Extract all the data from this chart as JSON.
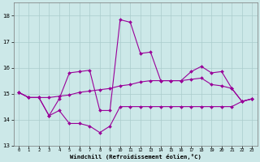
{
  "x": [
    0,
    1,
    2,
    3,
    4,
    5,
    6,
    7,
    8,
    9,
    10,
    11,
    12,
    13,
    14,
    15,
    16,
    17,
    18,
    19,
    20,
    21,
    22,
    23
  ],
  "line1": [
    15.05,
    14.85,
    14.85,
    14.15,
    14.8,
    15.8,
    15.85,
    15.9,
    14.35,
    14.35,
    17.85,
    17.75,
    16.55,
    16.6,
    15.5,
    15.5,
    15.5,
    15.85,
    16.05,
    15.8,
    15.85,
    15.2,
    14.7,
    14.8
  ],
  "line2": [
    15.05,
    14.85,
    14.85,
    14.85,
    14.9,
    14.95,
    15.05,
    15.1,
    15.15,
    15.2,
    15.3,
    15.35,
    15.45,
    15.5,
    15.5,
    15.5,
    15.5,
    15.55,
    15.6,
    15.35,
    15.3,
    15.2,
    14.7,
    14.8
  ],
  "line3": [
    15.05,
    14.85,
    14.85,
    14.15,
    14.35,
    13.85,
    13.85,
    13.75,
    13.5,
    13.75,
    14.5,
    14.5,
    14.5,
    14.5,
    14.5,
    14.5,
    14.5,
    14.5,
    14.5,
    14.5,
    14.5,
    14.5,
    14.7,
    14.8
  ],
  "bg_color": "#cce8e8",
  "grid_color": "#aacccc",
  "line_color": "#990099",
  "xlabel": "Windchill (Refroidissement éolien,°C)",
  "ylim": [
    13,
    18.5
  ],
  "xlim": [
    -0.5,
    23.5
  ],
  "yticks": [
    13,
    14,
    15,
    16,
    17,
    18
  ],
  "xticks": [
    0,
    1,
    2,
    3,
    4,
    5,
    6,
    7,
    8,
    9,
    10,
    11,
    12,
    13,
    14,
    15,
    16,
    17,
    18,
    19,
    20,
    21,
    22,
    23
  ]
}
